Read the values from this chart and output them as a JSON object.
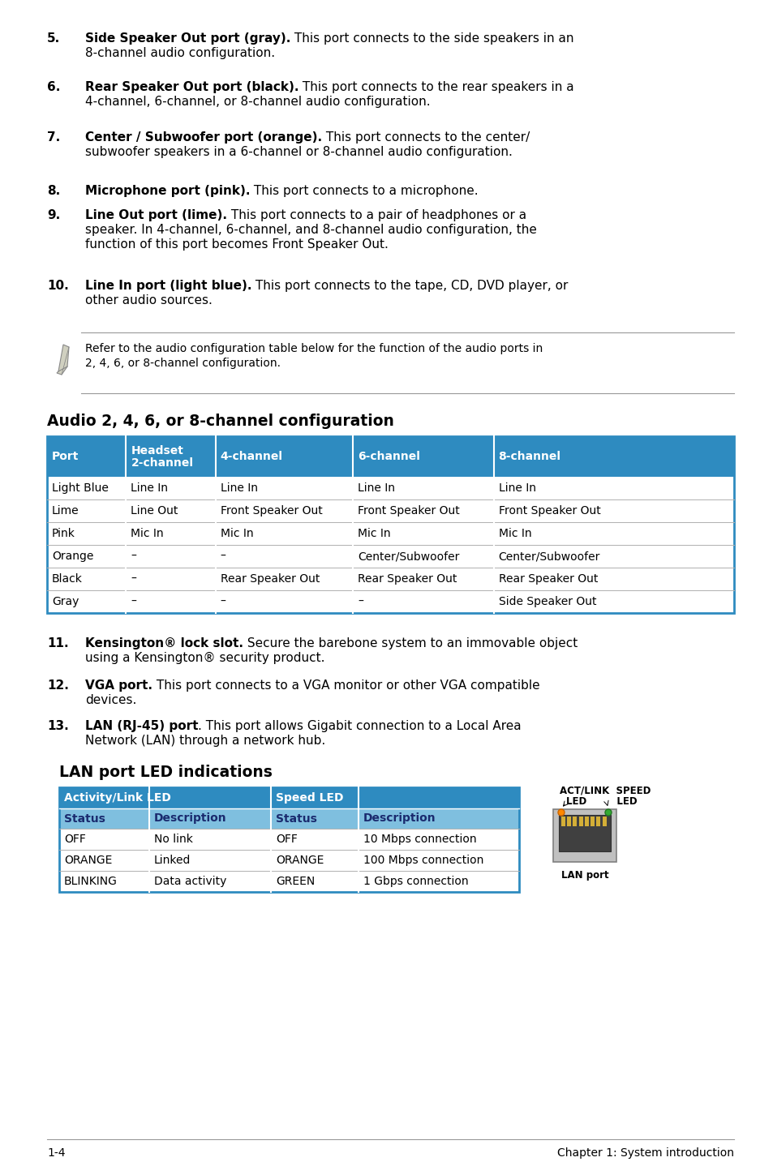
{
  "bg_color": "#ffffff",
  "blue_header": "#2e8bc0",
  "blue_subheader": "#7fbfdf",
  "items": [
    [
      "5.",
      "Side Speaker Out port (gray).",
      " This port connects to the side speakers in an\n8-channel audio configuration."
    ],
    [
      "6.",
      "Rear Speaker Out port (black).",
      " This port connects to the rear speakers in a\n4-channel, 6-channel, or 8-channel audio configuration."
    ],
    [
      "7.",
      "Center / Subwoofer port (orange).",
      " This port connects to the center/\nsubwoofer speakers in a 6-channel or 8-channel audio configuration."
    ],
    [
      "8.",
      "Microphone port (pink).",
      " This port connects to a microphone."
    ],
    [
      "9.",
      "Line Out port (lime).",
      " This port connects to a pair of headphones or a\nspeaker. In 4-channel, 6-channel, and 8-channel audio configuration, the\nfunction of this port becomes Front Speaker Out."
    ],
    [
      "10.",
      "Line In port (light blue).",
      " This port connects to the tape, CD, DVD player, or\nother audio sources."
    ]
  ],
  "note_line1": "Refer to the audio configuration table below for the function of the audio ports in",
  "note_line2": "2, 4, 6, or 8-channel configuration.",
  "audio_title": "Audio 2, 4, 6, or 8-channel configuration",
  "audio_headers": [
    "Port",
    "Headset\n2-channel",
    "4-channel",
    "6-channel",
    "8-channel"
  ],
  "audio_rows": [
    [
      "Light Blue",
      "Line In",
      "Line In",
      "Line In",
      "Line In"
    ],
    [
      "Lime",
      "Line Out",
      "Front Speaker Out",
      "Front Speaker Out",
      "Front Speaker Out"
    ],
    [
      "Pink",
      "Mic In",
      "Mic In",
      "Mic In",
      "Mic In"
    ],
    [
      "Orange",
      "–",
      "–",
      "Center/Subwoofer",
      "Center/Subwoofer"
    ],
    [
      "Black",
      "–",
      "Rear Speaker Out",
      "Rear Speaker Out",
      "Rear Speaker Out"
    ],
    [
      "Gray",
      "–",
      "–",
      "–",
      "Side Speaker Out"
    ]
  ],
  "items2": [
    [
      "11.",
      "Kensington® lock slot.",
      " Secure the barebone system to an immovable object\nusing a Kensington® security product."
    ],
    [
      "12.",
      "VGA port.",
      " This port connects to a VGA monitor or other VGA compatible\ndevices."
    ],
    [
      "13.",
      "LAN (RJ-45) port",
      ". This port allows Gigabit connection to a Local Area\nNetwork (LAN) through a network hub."
    ]
  ],
  "lan_title": "LAN port LED indications",
  "lan_h1": [
    "Activity/Link LED",
    "Speed LED"
  ],
  "lan_h2": [
    "Status",
    "Description",
    "Status",
    "Description"
  ],
  "lan_rows": [
    [
      "OFF",
      "No link",
      "OFF",
      "10 Mbps connection"
    ],
    [
      "ORANGE",
      "Linked",
      "ORANGE",
      "100 Mbps connection"
    ],
    [
      "BLINKING",
      "Data activity",
      "GREEN",
      "1 Gbps connection"
    ]
  ],
  "footer_left": "1-4",
  "footer_right": "Chapter 1: System introduction"
}
